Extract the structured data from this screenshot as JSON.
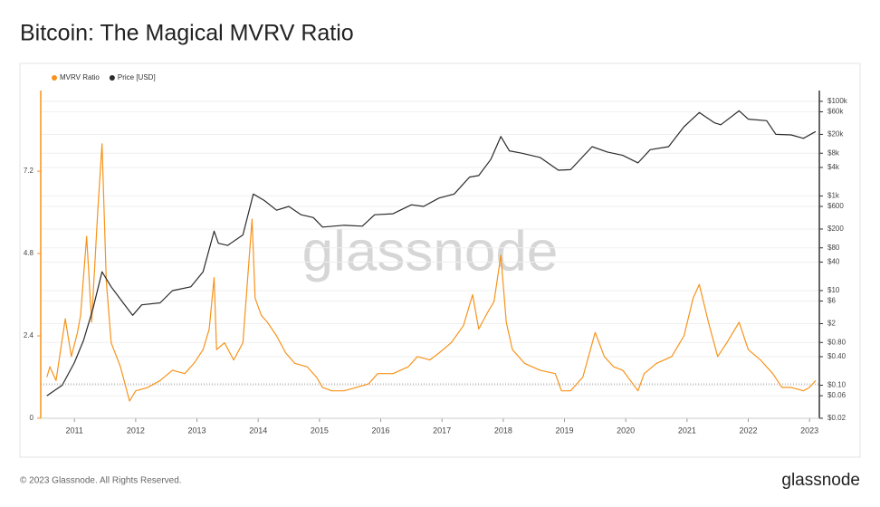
{
  "title": "Bitcoin: The Magical MVRV Ratio",
  "footer": "© 2023 Glassnode. All Rights Reserved.",
  "logo": "glassnode",
  "chart_data": {
    "type": "line",
    "watermark": "glassnode",
    "legend": "top-left",
    "grid": true,
    "y2scale": "log",
    "hline": 1,
    "xlim": [
      2010.45,
      2023.16
    ],
    "xticks": [
      2011,
      2012,
      2013,
      2014,
      2015,
      2016,
      2017,
      2018,
      2019,
      2020,
      2021,
      2022,
      2023
    ],
    "ylim": [
      0,
      9.55
    ],
    "yticks": [
      0,
      2.4,
      4.8,
      7.2
    ],
    "y2lim": [
      0.02,
      169000
    ],
    "y2ticks": [
      {
        "value": 100000,
        "label": "$100k"
      },
      {
        "value": 60000,
        "label": "$60k"
      },
      {
        "value": 20000,
        "label": "$20k"
      },
      {
        "value": 8000,
        "label": "$8k"
      },
      {
        "value": 4000,
        "label": "$4k"
      },
      {
        "value": 1000,
        "label": "$1k"
      },
      {
        "value": 600,
        "label": "$600"
      },
      {
        "value": 200,
        "label": "$200"
      },
      {
        "value": 80,
        "label": "$80"
      },
      {
        "value": 40,
        "label": "$40"
      },
      {
        "value": 10,
        "label": "$10"
      },
      {
        "value": 6,
        "label": "$6"
      },
      {
        "value": 2,
        "label": "$2"
      },
      {
        "value": 0.8,
        "label": "$0.80"
      },
      {
        "value": 0.4,
        "label": "$0.40"
      },
      {
        "value": 0.1,
        "label": "$0.10"
      },
      {
        "value": 0.06,
        "label": "$0.06"
      },
      {
        "value": 0.02,
        "label": "$0.02"
      }
    ],
    "series": [
      {
        "name": "MVRV Ratio",
        "color": "#f7931a",
        "axis": "y",
        "x": [
          2010.55,
          2010.6,
          2010.7,
          2010.85,
          2010.95,
          2011.05,
          2011.1,
          2011.2,
          2011.28,
          2011.38,
          2011.45,
          2011.52,
          2011.6,
          2011.75,
          2011.9,
          2012.0,
          2012.2,
          2012.4,
          2012.6,
          2012.8,
          2012.95,
          2013.1,
          2013.2,
          2013.28,
          2013.32,
          2013.45,
          2013.6,
          2013.75,
          2013.9,
          2013.95,
          2014.05,
          2014.15,
          2014.3,
          2014.45,
          2014.6,
          2014.8,
          2014.95,
          2015.05,
          2015.2,
          2015.4,
          2015.6,
          2015.8,
          2015.95,
          2016.2,
          2016.45,
          2016.6,
          2016.8,
          2016.95,
          2017.15,
          2017.35,
          2017.5,
          2017.6,
          2017.75,
          2017.85,
          2017.96,
          2018.05,
          2018.15,
          2018.35,
          2018.6,
          2018.85,
          2018.95,
          2019.1,
          2019.3,
          2019.5,
          2019.65,
          2019.8,
          2019.95,
          2020.2,
          2020.3,
          2020.5,
          2020.75,
          2020.95,
          2021.1,
          2021.2,
          2021.35,
          2021.5,
          2021.65,
          2021.85,
          2022.0,
          2022.2,
          2022.4,
          2022.55,
          2022.7,
          2022.9,
          2023.0,
          2023.1
        ],
        "values": [
          1.2,
          1.5,
          1.1,
          2.9,
          1.8,
          2.5,
          3.0,
          5.3,
          2.8,
          6.0,
          8.0,
          4.0,
          2.2,
          1.5,
          0.5,
          0.8,
          0.9,
          1.1,
          1.4,
          1.3,
          1.6,
          2.0,
          2.6,
          4.1,
          2.0,
          2.2,
          1.7,
          2.2,
          5.8,
          3.5,
          3.0,
          2.8,
          2.4,
          1.9,
          1.6,
          1.5,
          1.2,
          0.9,
          0.8,
          0.8,
          0.9,
          1.0,
          1.3,
          1.3,
          1.5,
          1.8,
          1.7,
          1.9,
          2.2,
          2.7,
          3.6,
          2.6,
          3.1,
          3.4,
          4.75,
          2.8,
          2.0,
          1.6,
          1.4,
          1.3,
          0.8,
          0.8,
          1.2,
          2.5,
          1.8,
          1.5,
          1.4,
          0.8,
          1.3,
          1.6,
          1.8,
          2.4,
          3.5,
          3.9,
          2.8,
          1.8,
          2.2,
          2.8,
          2.0,
          1.7,
          1.3,
          0.9,
          0.9,
          0.8,
          0.9,
          1.1
        ]
      },
      {
        "name": "Price [USD]",
        "color": "#2b2b2b",
        "axis": "y2",
        "x": [
          2010.55,
          2010.8,
          2011.0,
          2011.15,
          2011.3,
          2011.45,
          2011.6,
          2011.8,
          2011.95,
          2012.1,
          2012.4,
          2012.6,
          2012.9,
          2013.1,
          2013.28,
          2013.35,
          2013.5,
          2013.75,
          2013.92,
          2014.1,
          2014.3,
          2014.5,
          2014.7,
          2014.9,
          2015.05,
          2015.4,
          2015.7,
          2015.9,
          2016.2,
          2016.5,
          2016.7,
          2016.95,
          2017.2,
          2017.45,
          2017.6,
          2017.8,
          2017.96,
          2018.1,
          2018.3,
          2018.6,
          2018.9,
          2019.1,
          2019.45,
          2019.7,
          2019.95,
          2020.2,
          2020.4,
          2020.7,
          2020.95,
          2021.2,
          2021.45,
          2021.55,
          2021.85,
          2022.0,
          2022.3,
          2022.45,
          2022.7,
          2022.9,
          2023.1
        ],
        "values": [
          0.06,
          0.1,
          0.3,
          0.9,
          4,
          25,
          12,
          5.4,
          3,
          5,
          5.5,
          10,
          12,
          25,
          180,
          100,
          90,
          150,
          1100,
          800,
          500,
          600,
          400,
          350,
          220,
          240,
          230,
          400,
          420,
          650,
          600,
          900,
          1100,
          2500,
          2700,
          6000,
          18000,
          9000,
          8000,
          6500,
          3500,
          3600,
          11000,
          8500,
          7200,
          5000,
          9500,
          11000,
          29000,
          58000,
          35000,
          32000,
          63000,
          42000,
          39000,
          20000,
          19500,
          16500,
          23000
        ]
      }
    ]
  }
}
